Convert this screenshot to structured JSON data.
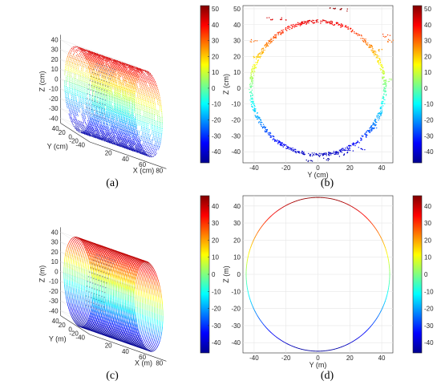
{
  "colormap": [
    "#00008f",
    "#0000ff",
    "#0080ff",
    "#00ffff",
    "#80ff80",
    "#ffff00",
    "#ff8000",
    "#ff0000",
    "#800000"
  ],
  "chart_data": [
    {
      "id": "a",
      "caption": "(a)",
      "type": "scatter",
      "view": "3d",
      "xlabel": "X (cm)",
      "ylabel": "Y (cm)",
      "zlabel": "Z (cm)",
      "xticks": [
        "20",
        "40",
        "60",
        "80"
      ],
      "yticks": [
        "40",
        "20",
        "0",
        "-20",
        "-40"
      ],
      "zticks": [
        "40",
        "30",
        "20",
        "10",
        "0",
        "-10",
        "-20",
        "-30",
        "-40"
      ],
      "xlim": [
        0,
        90
      ],
      "ylim": [
        -45,
        45
      ],
      "zlim": [
        -45,
        45
      ],
      "radius": 43,
      "grid": true
    },
    {
      "id": "b",
      "caption": "(b)",
      "type": "scatter",
      "view": "y-z",
      "xlabel": "Y (cm)",
      "ylabel": "Z (cm)",
      "xticks": [
        "-40",
        "-20",
        "0",
        "20",
        "40"
      ],
      "yticks": [
        "50",
        "40",
        "30",
        "20",
        "10",
        "0",
        "-10",
        "-20",
        "-30",
        "-40"
      ],
      "xlim": [
        -47,
        47
      ],
      "ylim": [
        -47,
        52
      ],
      "radius": 42,
      "grid": true,
      "colorbar_ticks": [
        "50",
        "40",
        "30",
        "20",
        "10",
        "0",
        "-10",
        "-20",
        "-30",
        "-40"
      ],
      "colorbar_range": [
        -47,
        52
      ]
    },
    {
      "id": "c",
      "caption": "(c)",
      "type": "line",
      "view": "3d",
      "xlabel": "X (m)",
      "ylabel": "Y (m)",
      "zlabel": "Z (m)",
      "xticks": [
        "20",
        "40",
        "60",
        "80"
      ],
      "yticks": [
        "40",
        "20",
        "0",
        "-20",
        "-40"
      ],
      "zticks": [
        "40",
        "30",
        "20",
        "10",
        "0",
        "-10",
        "-20",
        "-30",
        "-40"
      ],
      "xlim": [
        0,
        90
      ],
      "ylim": [
        -45,
        45
      ],
      "zlim": [
        -45,
        45
      ],
      "radius": 45,
      "grid": true
    },
    {
      "id": "d",
      "caption": "(d)",
      "type": "line",
      "view": "y-z",
      "xlabel": "Y (m)",
      "ylabel": "Z (m)",
      "xticks": [
        "-40",
        "-20",
        "0",
        "20",
        "40"
      ],
      "yticks": [
        "40",
        "30",
        "20",
        "10",
        "0",
        "-10",
        "-20",
        "-30",
        "-40"
      ],
      "xlim": [
        -47,
        47
      ],
      "ylim": [
        -46,
        46
      ],
      "radius": 45,
      "grid": true,
      "colorbar_ticks": [
        "40",
        "30",
        "20",
        "10",
        "0",
        "-10",
        "-20",
        "-30",
        "-40"
      ],
      "colorbar_range": [
        -46,
        46
      ]
    }
  ]
}
